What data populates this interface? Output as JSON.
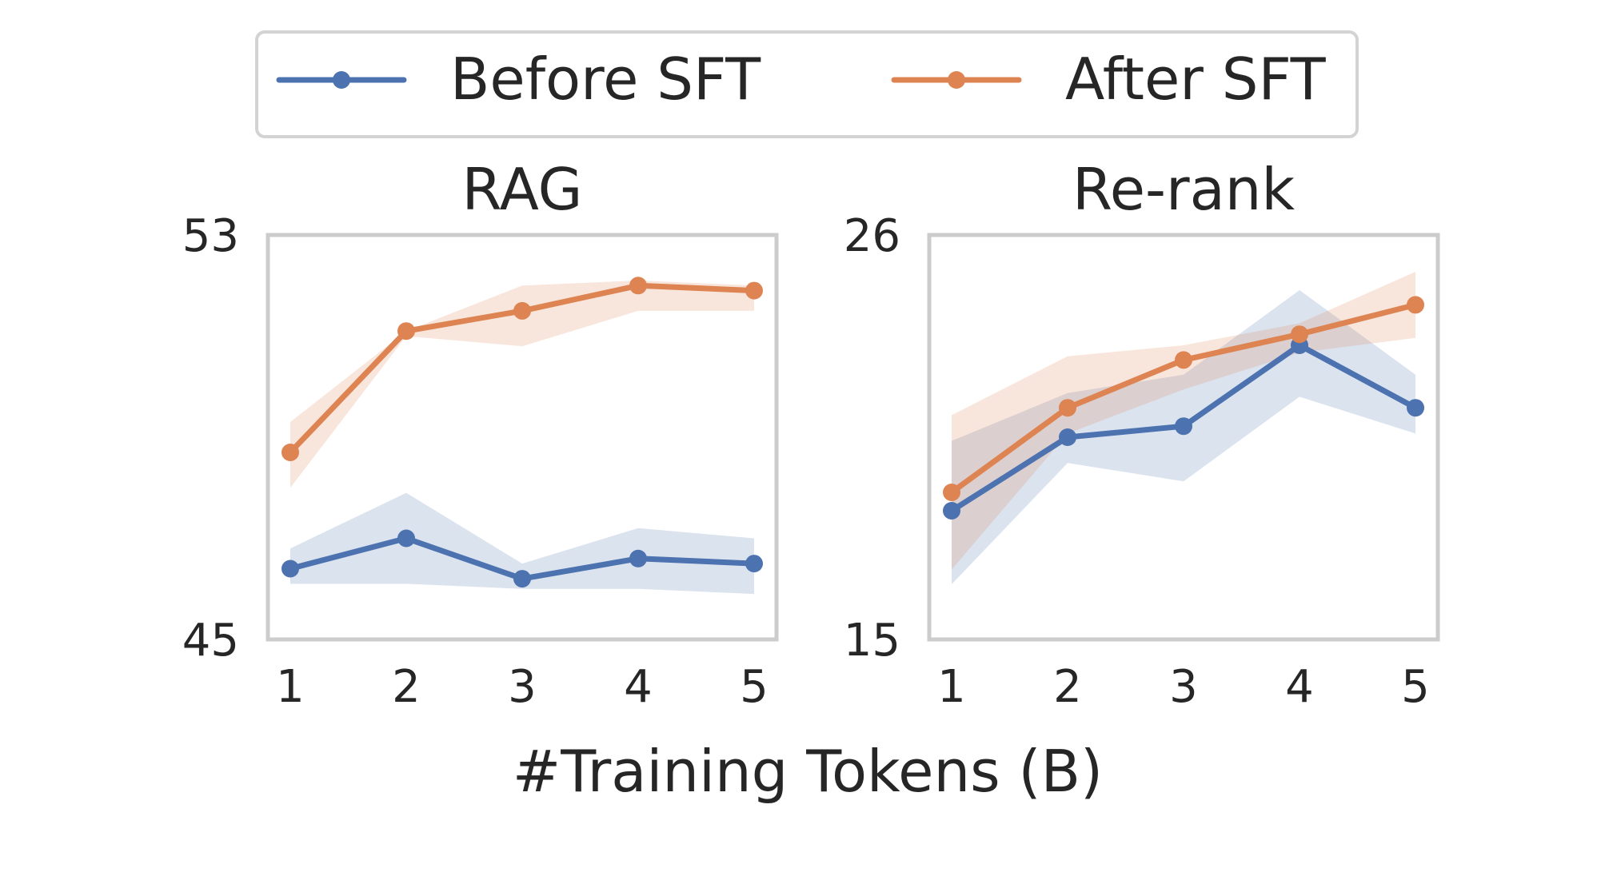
{
  "legend": {
    "entries": [
      {
        "label": "Before SFT",
        "color": "#4c72b0"
      },
      {
        "label": "After SFT",
        "color": "#dd8452"
      }
    ]
  },
  "xlabel": "#Training Tokens (B)",
  "chart_data": [
    {
      "type": "line",
      "title": "RAG",
      "xlabel": "#Training Tokens (B)",
      "ylabel": "",
      "x": [
        1,
        2,
        3,
        4,
        5
      ],
      "xticks": [
        "1",
        "2",
        "3",
        "4",
        "5"
      ],
      "ylim": [
        45,
        53
      ],
      "yticks": [
        "45",
        "53"
      ],
      "grid": false,
      "legend_position": "top-center",
      "series": [
        {
          "name": "Before SFT",
          "color": "#4c72b0",
          "values": [
            46.4,
            47.0,
            46.2,
            46.6,
            46.5
          ],
          "band_lower": [
            46.1,
            46.1,
            46.0,
            46.0,
            45.9
          ],
          "band_upper": [
            46.8,
            47.9,
            46.5,
            47.2,
            47.0
          ]
        },
        {
          "name": "After SFT",
          "color": "#dd8452",
          "values": [
            48.7,
            51.1,
            51.5,
            52.0,
            51.9
          ],
          "band_lower": [
            48.0,
            51.0,
            50.8,
            51.5,
            51.5
          ],
          "band_upper": [
            49.3,
            51.1,
            52.0,
            52.1,
            52.0
          ]
        }
      ]
    },
    {
      "type": "line",
      "title": "Re-rank",
      "xlabel": "#Training Tokens (B)",
      "ylabel": "",
      "x": [
        1,
        2,
        3,
        4,
        5
      ],
      "xticks": [
        "1",
        "2",
        "3",
        "4",
        "5"
      ],
      "ylim": [
        15,
        26
      ],
      "yticks": [
        "15",
        "26"
      ],
      "grid": false,
      "series": [
        {
          "name": "Before SFT",
          "color": "#4c72b0",
          "values": [
            18.5,
            20.5,
            20.8,
            23.0,
            21.3
          ],
          "band_lower": [
            16.5,
            19.8,
            19.3,
            21.6,
            20.6
          ],
          "band_upper": [
            20.4,
            21.7,
            22.2,
            24.5,
            22.2
          ]
        },
        {
          "name": "After SFT",
          "color": "#dd8452",
          "values": [
            19.0,
            21.3,
            22.6,
            23.3,
            24.1
          ],
          "band_lower": [
            16.9,
            20.6,
            21.8,
            22.8,
            23.2
          ],
          "band_upper": [
            21.1,
            22.7,
            23.0,
            23.6,
            25.0
          ]
        }
      ]
    }
  ]
}
